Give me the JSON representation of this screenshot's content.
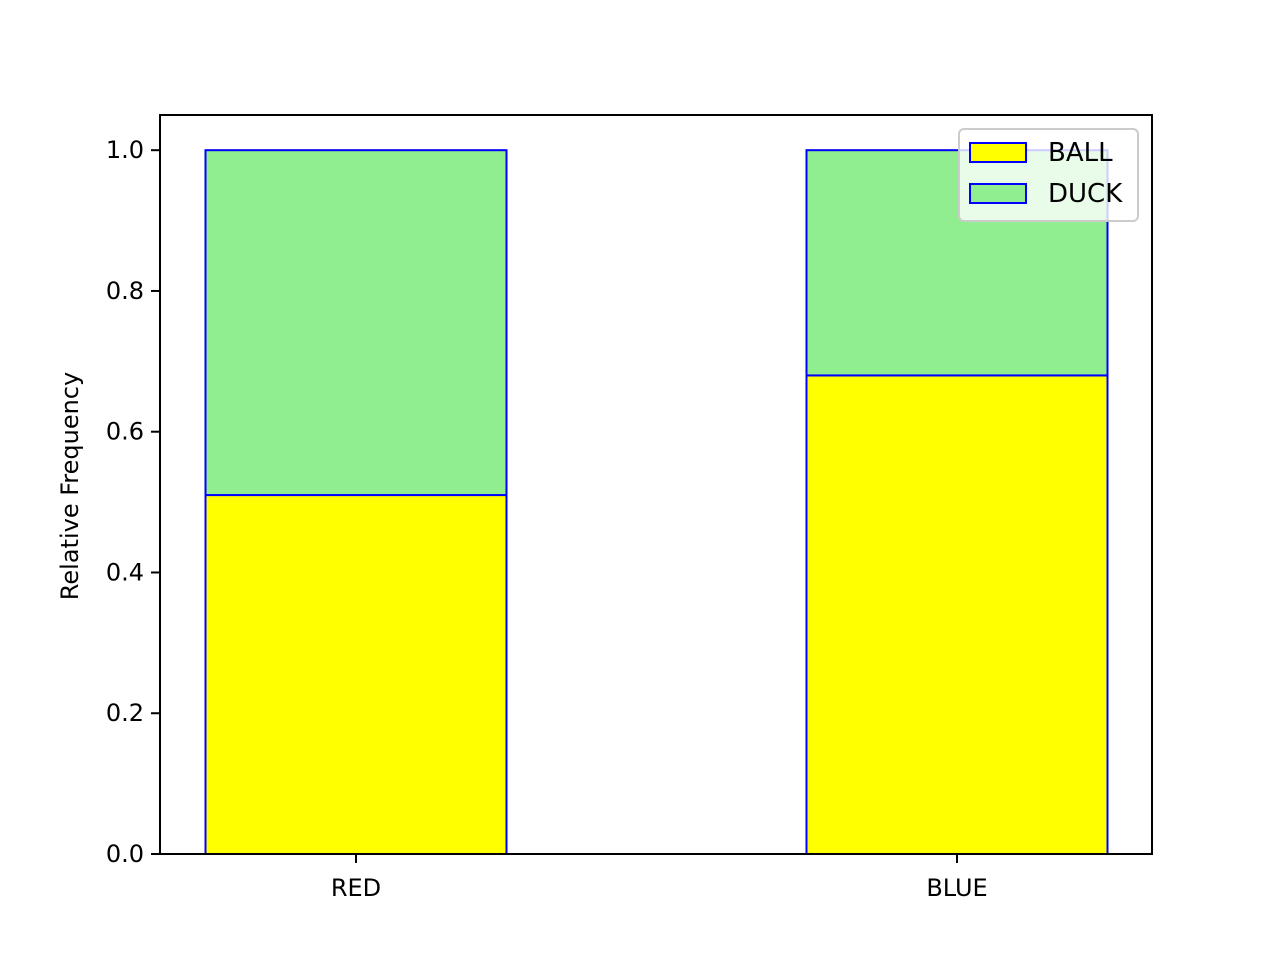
{
  "chart_data": {
    "type": "bar",
    "stacked": true,
    "title": "",
    "xlabel": "",
    "ylabel": "Relative Frequency",
    "categories": [
      "RED",
      "BLUE"
    ],
    "series": [
      {
        "name": "BALL",
        "values": [
          0.51,
          0.68
        ],
        "color": "#ffff00"
      },
      {
        "name": "DUCK",
        "values": [
          0.49,
          0.32
        ],
        "color": "#90ee90"
      }
    ],
    "ylim": [
      0,
      1.05
    ],
    "yticks": [
      0.0,
      0.2,
      0.4,
      0.6,
      0.8,
      1.0
    ],
    "ytick_labels": [
      "0.0",
      "0.2",
      "0.4",
      "0.6",
      "0.8",
      "1.0"
    ],
    "bar_edge_color": "#0000ff",
    "grid": false,
    "legend_position": "top-right"
  }
}
